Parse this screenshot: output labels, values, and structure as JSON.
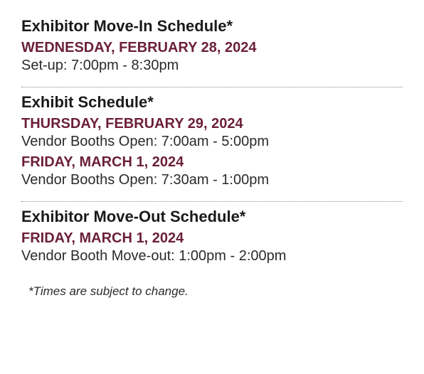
{
  "colors": {
    "heading_text": "#1a1a1a",
    "date_text": "#6b1f3a",
    "body_text": "#2a2a2a",
    "divider": "#888888",
    "background": "#ffffff"
  },
  "typography": {
    "title_fontsize": 22,
    "date_fontsize": 20,
    "detail_fontsize": 20,
    "footnote_fontsize": 17,
    "font_family": "Arial"
  },
  "sections": [
    {
      "title": "Exhibitor Move-In Schedule*",
      "entries": [
        {
          "date": "WEDNESDAY, FEBRUARY 28, 2024",
          "detail": "Set-up: 7:00pm - 8:30pm"
        }
      ]
    },
    {
      "title": "Exhibit Schedule*",
      "entries": [
        {
          "date": "THURSDAY, FEBRUARY 29, 2024",
          "detail": "Vendor Booths Open: 7:00am - 5:00pm"
        },
        {
          "date": "FRIDAY, MARCH 1, 2024",
          "detail": "Vendor Booths Open: 7:30am - 1:00pm"
        }
      ]
    },
    {
      "title": "Exhibitor Move-Out Schedule*",
      "entries": [
        {
          "date": "FRIDAY, MARCH 1, 2024",
          "detail": "Vendor Booth Move-out: 1:00pm - 2:00pm"
        }
      ]
    }
  ],
  "footnote": "*Times are subject to change."
}
